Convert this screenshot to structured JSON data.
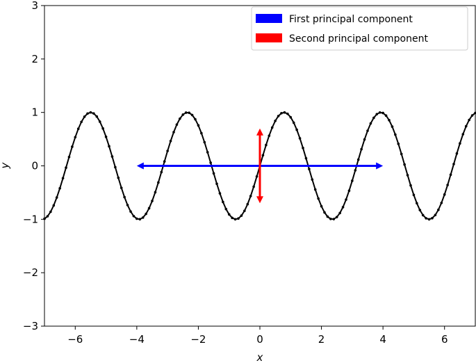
{
  "chart_data": {
    "type": "line",
    "xlabel": "x",
    "ylabel": "y",
    "xlim": [
      -7,
      7
    ],
    "ylim": [
      -3,
      3
    ],
    "x_ticks": [
      -6,
      -4,
      -2,
      0,
      2,
      4,
      6
    ],
    "x_tick_labels": [
      "−6",
      "−4",
      "−2",
      "0",
      "2",
      "4",
      "6"
    ],
    "y_ticks": [
      -3,
      -2,
      -1,
      0,
      1,
      2,
      3
    ],
    "y_tick_labels": [
      "−3",
      "−2",
      "−1",
      "0",
      "1",
      "2",
      "3"
    ],
    "grid": false,
    "legend_position": "top-right",
    "curve": {
      "function": "sin(2x)",
      "x_range": [
        -7,
        7
      ],
      "num_points": 141,
      "color": "#000000",
      "markers": true
    },
    "arrows": [
      {
        "name": "First principal component",
        "color": "#0000ff",
        "from": [
          -4,
          0
        ],
        "to": [
          4,
          0
        ],
        "double_headed": true
      },
      {
        "name": "Second principal component",
        "color": "#ff0000",
        "from": [
          0,
          -0.7
        ],
        "to": [
          0,
          0.7
        ],
        "double_headed": true
      }
    ]
  },
  "legend": {
    "items": [
      {
        "label": "First principal component",
        "color": "#0000ff"
      },
      {
        "label": "Second principal component",
        "color": "#ff0000"
      }
    ]
  }
}
